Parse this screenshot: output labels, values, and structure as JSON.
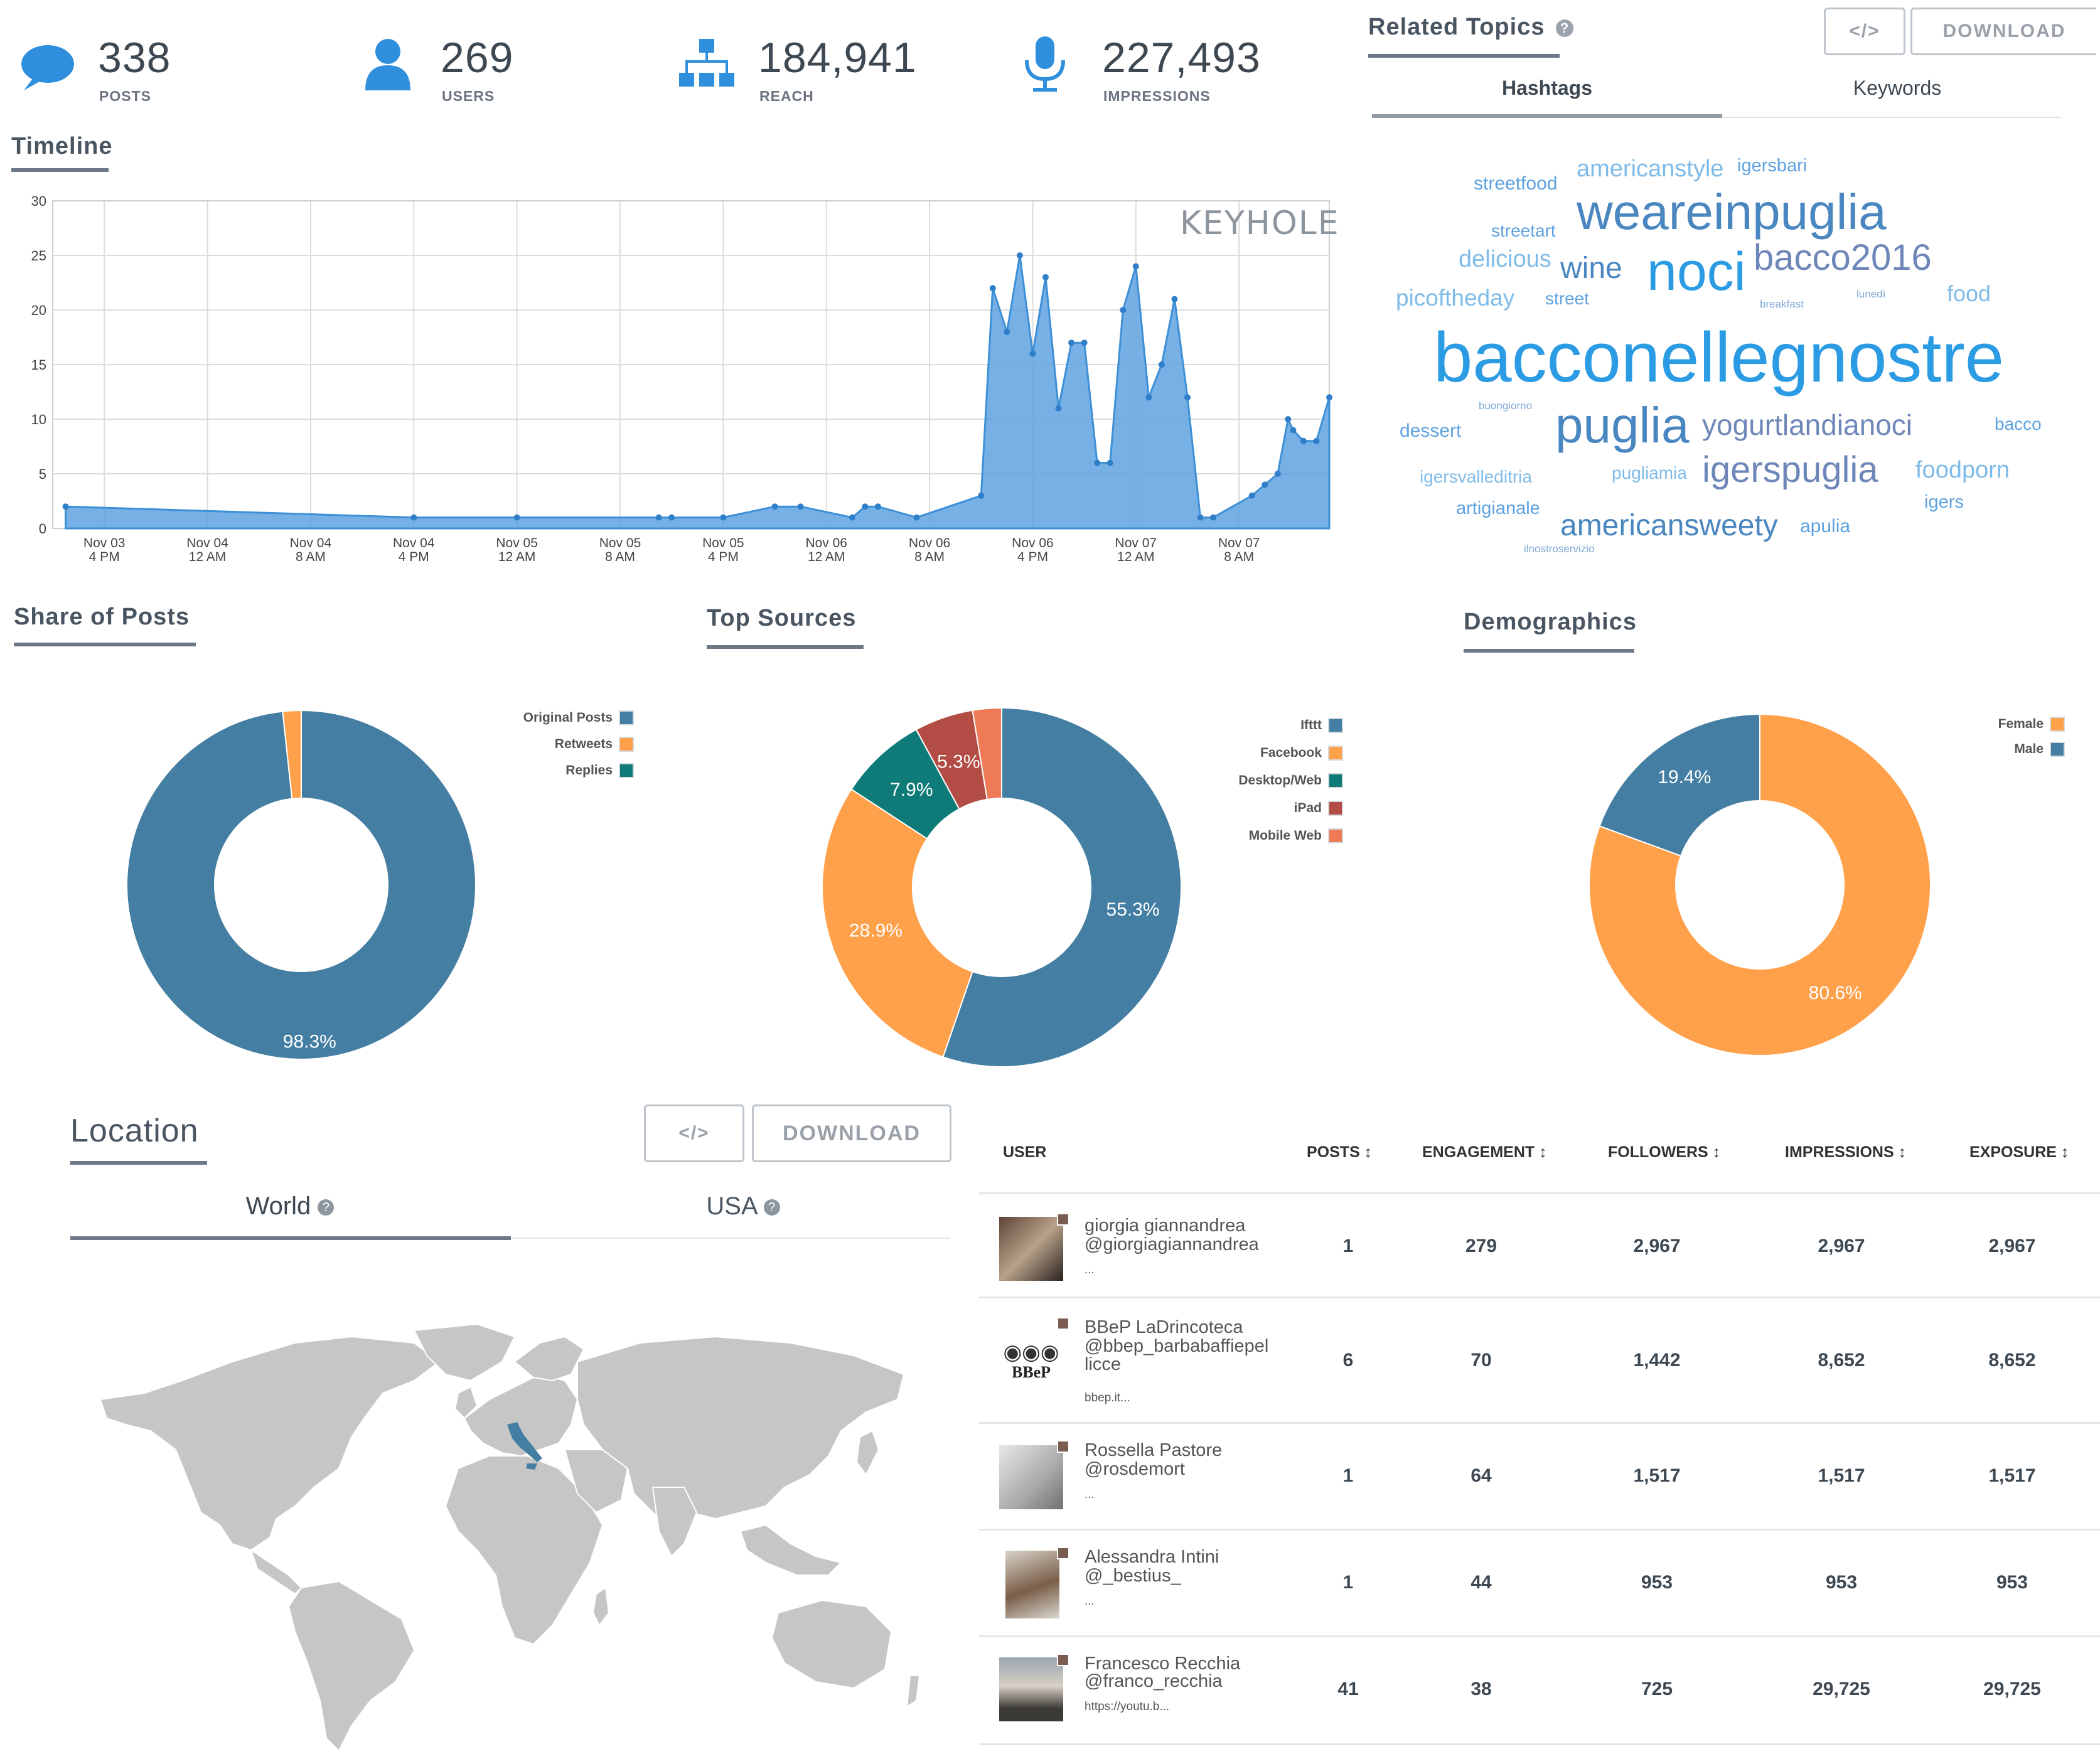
{
  "stats": [
    {
      "icon": "speech-bubble-icon",
      "value": "338",
      "label": "POSTS"
    },
    {
      "icon": "user-icon",
      "value": "269",
      "label": "USERS"
    },
    {
      "icon": "org-chart-icon",
      "value": "184,941",
      "label": "REACH"
    },
    {
      "icon": "microphone-icon",
      "value": "227,493",
      "label": "IMPRESSIONS"
    }
  ],
  "timeline": {
    "title": "Timeline",
    "watermark": "KEYHOLE",
    "chart_data": {
      "type": "area",
      "y_ticks": [
        "0",
        "5",
        "10",
        "15",
        "20",
        "25",
        "30"
      ],
      "ylim": [
        0,
        30
      ],
      "x_ticks": [
        [
          "Nov 03",
          "4 PM"
        ],
        [
          "Nov 04",
          "12 AM"
        ],
        [
          "Nov 04",
          "8 AM"
        ],
        [
          "Nov 04",
          "4 PM"
        ],
        [
          "Nov 05",
          "12 AM"
        ],
        [
          "Nov 05",
          "8 AM"
        ],
        [
          "Nov 05",
          "4 PM"
        ],
        [
          "Nov 06",
          "12 AM"
        ],
        [
          "Nov 06",
          "8 AM"
        ],
        [
          "Nov 06",
          "4 PM"
        ],
        [
          "Nov 07",
          "12 AM"
        ],
        [
          "Nov 07",
          "8 AM"
        ]
      ],
      "x_hours": [
        0,
        8,
        16,
        24,
        32,
        40,
        48,
        56,
        64,
        72,
        80,
        88
      ],
      "series": [
        {
          "x": [
            -3,
            24,
            32,
            43,
            44,
            48,
            52,
            54,
            58,
            59,
            60,
            63,
            68,
            68.9,
            70,
            71,
            72,
            73,
            74,
            75,
            76,
            77,
            78,
            79,
            80,
            81,
            82,
            83,
            84,
            85,
            86,
            89,
            90,
            91,
            91.8,
            92.2,
            93,
            94,
            95
          ],
          "y": [
            2,
            1,
            1,
            1,
            1,
            1,
            2,
            2,
            1,
            2,
            2,
            1,
            3,
            22,
            18,
            25,
            16,
            23,
            11,
            17,
            17,
            6,
            6,
            20,
            24,
            12,
            15,
            21,
            12,
            1,
            1,
            3,
            4,
            5,
            10,
            9,
            8,
            8,
            12
          ]
        }
      ],
      "color": "#5ea2e0"
    }
  },
  "related": {
    "title": "Related Topics",
    "embed_label": "</>",
    "download_label": "DOWNLOAD",
    "tabs": [
      "Hashtags",
      "Keywords"
    ],
    "words": [
      {
        "text": "streetfood",
        "size": 30,
        "color": "#5ea2e0"
      },
      {
        "text": "americanstyle",
        "size": 38,
        "color": "#7fbbe8"
      },
      {
        "text": "igersbari",
        "size": 29,
        "color": "#5ea2e0"
      },
      {
        "text": "weareinpuglia",
        "size": 80,
        "color": "#4a86c0"
      },
      {
        "text": "streetart",
        "size": 28,
        "color": "#5ea2e0"
      },
      {
        "text": "delicious",
        "size": 38,
        "color": "#7fbbe8"
      },
      {
        "text": "wine",
        "size": 48,
        "color": "#4a86c0"
      },
      {
        "text": "noci",
        "size": 86,
        "color": "#2b9be4"
      },
      {
        "text": "bacco2016",
        "size": 58,
        "color": "#6f87b8"
      },
      {
        "text": "picoftheday",
        "size": 37,
        "color": "#7fbbe8"
      },
      {
        "text": "street",
        "size": 28,
        "color": "#5ea2e0"
      },
      {
        "text": "breakfast",
        "size": 17,
        "color": "#7fa9d6"
      },
      {
        "text": "lunedì",
        "size": 17,
        "color": "#7fa9d6"
      },
      {
        "text": "food",
        "size": 36,
        "color": "#7fbbe8"
      },
      {
        "text": "bacconellegnostre",
        "size": 112,
        "color": "#2b9be4"
      },
      {
        "text": "buongiorno",
        "size": 17,
        "color": "#7fa9d6"
      },
      {
        "text": "dessert",
        "size": 30,
        "color": "#5ea2e0"
      },
      {
        "text": "puglia",
        "size": 80,
        "color": "#4a86c0"
      },
      {
        "text": "yogurtlandianoci",
        "size": 46,
        "color": "#6f87b8"
      },
      {
        "text": "bacco",
        "size": 28,
        "color": "#5ea2e0"
      },
      {
        "text": "igersvalleditria",
        "size": 28,
        "color": "#7fbbe8"
      },
      {
        "text": "pugliamia",
        "size": 28,
        "color": "#7fbbe8"
      },
      {
        "text": "igerspuglia",
        "size": 58,
        "color": "#6f87b8"
      },
      {
        "text": "foodporn",
        "size": 38,
        "color": "#7fbbe8"
      },
      {
        "text": "artigianale",
        "size": 29,
        "color": "#5ea2e0"
      },
      {
        "text": "americansweety",
        "size": 48,
        "color": "#4a86c0"
      },
      {
        "text": "apulia",
        "size": 30,
        "color": "#5ea2e0"
      },
      {
        "text": "igers",
        "size": 29,
        "color": "#5ea2e0"
      },
      {
        "text": "ilnostroservizio",
        "size": 17,
        "color": "#7fa9d6"
      }
    ]
  },
  "share": {
    "title": "Share of Posts",
    "chart_data": {
      "type": "pie",
      "labels": [
        "Original Posts",
        "Retweets",
        "Replies"
      ],
      "values": [
        98.3,
        1.7,
        0
      ],
      "value_labels": [
        "98.3%",
        "",
        ""
      ],
      "colors": [
        "#447ea2",
        "#ffa04a",
        "#0e7b78"
      ]
    }
  },
  "sources": {
    "title": "Top Sources",
    "chart_data": {
      "type": "pie",
      "labels": [
        "Ifttt",
        "Facebook",
        "Desktop/Web",
        "iPad",
        "Mobile Web"
      ],
      "values": [
        55.3,
        28.9,
        7.9,
        5.3,
        2.6
      ],
      "value_labels": [
        "55.3%",
        "28.9%",
        "7.9%",
        "5.3%",
        ""
      ],
      "colors": [
        "#447ea2",
        "#ffa04a",
        "#0e7b78",
        "#b24c44",
        "#ef7a57"
      ]
    }
  },
  "demographics": {
    "title": "Demographics",
    "chart_data": {
      "type": "pie",
      "labels": [
        "Female",
        "Male"
      ],
      "values": [
        80.6,
        19.4
      ],
      "value_labels": [
        "80.6%",
        "19.4%"
      ],
      "colors": [
        "#ffa04a",
        "#447ea2"
      ]
    }
  },
  "location": {
    "title": "Location",
    "embed_label": "</>",
    "download_label": "DOWNLOAD",
    "tabs": [
      "World",
      "USA"
    ],
    "highlight_country": "Italy",
    "land_color": "#c6c6c6",
    "highlight_color": "#447ea2"
  },
  "users_table": {
    "headers": [
      "USER",
      "POSTS ↕",
      "ENGAGEMENT ↕",
      "FOLLOWERS ↕",
      "IMPRESSIONS ↕",
      "EXPOSURE ↕"
    ],
    "rows": [
      {
        "name": "giorgia giannandrea",
        "handle": "@giorgiagiannandrea",
        "extra": "...",
        "posts": "1",
        "engagement": "279",
        "followers": "2,967",
        "impressions": "2,967",
        "exposure": "2,967"
      },
      {
        "name": "BBeP LaDrincoteca",
        "handle": "@bbep_barbabaffiepel licce",
        "extra": "bbep.it...",
        "posts": "6",
        "engagement": "70",
        "followers": "1,442",
        "impressions": "8,652",
        "exposure": "8,652"
      },
      {
        "name": "Rossella Pastore",
        "handle": "@rosdemort",
        "extra": "...",
        "posts": "1",
        "engagement": "64",
        "followers": "1,517",
        "impressions": "1,517",
        "exposure": "1,517"
      },
      {
        "name": "Alessandra Intini",
        "handle": "@_bestius_",
        "extra": "...",
        "posts": "1",
        "engagement": "44",
        "followers": "953",
        "impressions": "953",
        "exposure": "953"
      },
      {
        "name": "Francesco Recchia",
        "handle": "@franco_recchia",
        "extra": "https://youtu.b...",
        "posts": "41",
        "engagement": "38",
        "followers": "725",
        "impressions": "29,725",
        "exposure": "29,725"
      }
    ]
  }
}
